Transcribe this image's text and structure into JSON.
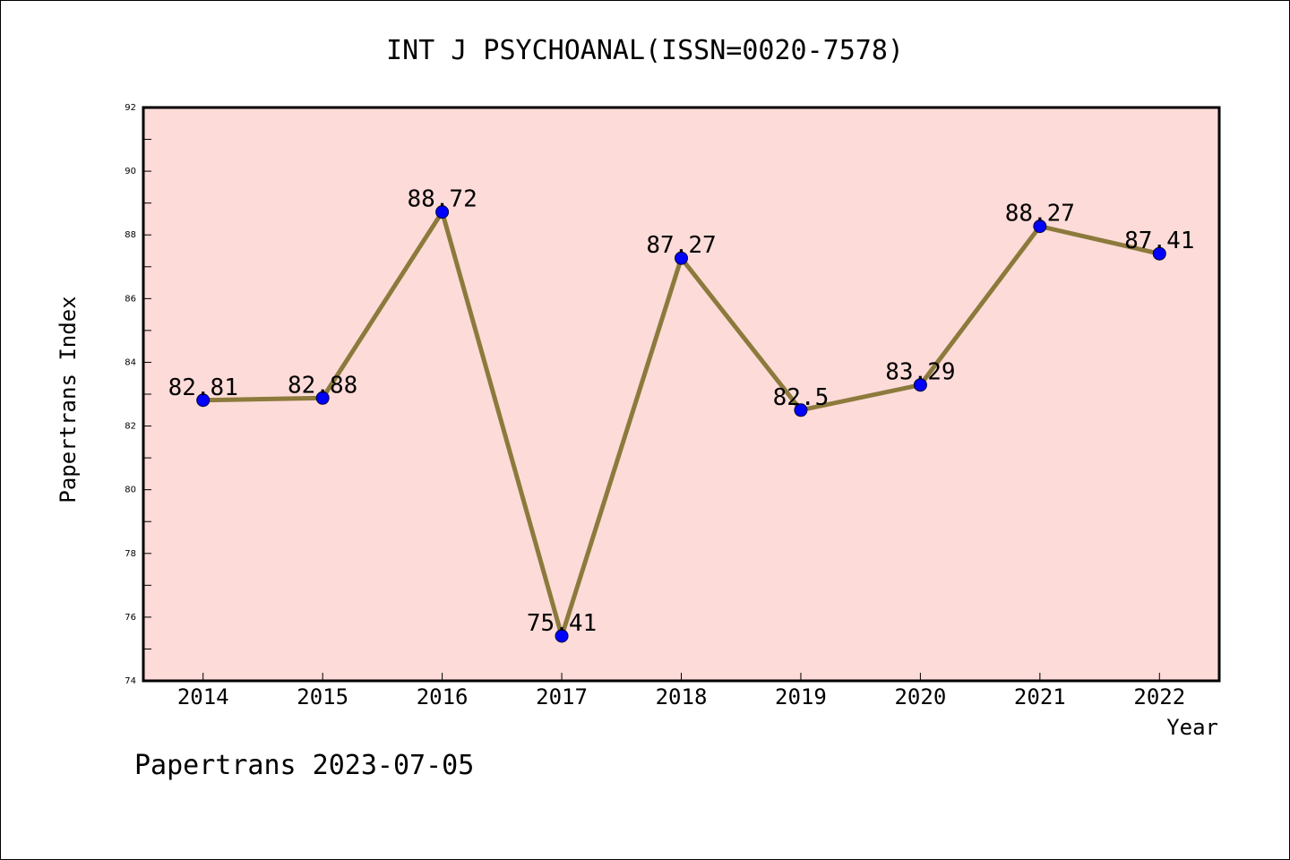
{
  "chart_data": {
    "type": "line",
    "title": "INT J PSYCHOANAL(ISSN=0020-7578)",
    "xlabel": "Year",
    "ylabel": "Papertrans Index",
    "categories": [
      "2014",
      "2015",
      "2016",
      "2017",
      "2018",
      "2019",
      "2020",
      "2021",
      "2022"
    ],
    "series": [
      {
        "values": [
          82.81,
          82.88,
          88.72,
          75.41,
          87.27,
          82.5,
          83.29,
          88.27,
          87.41
        ],
        "labels": [
          "82.81",
          "82.88",
          "88.72",
          "75.41",
          "87.27",
          "82.5",
          "83.29",
          "88.27",
          "87.41"
        ]
      }
    ],
    "ylim": [
      74,
      92
    ],
    "yticks": [
      "74",
      "76",
      "78",
      "80",
      "82",
      "84",
      "86",
      "88",
      "90",
      "92"
    ],
    "grid": false,
    "legend": "none",
    "colors": {
      "plot_background": "#fddbd8",
      "line": "#8c7a3c",
      "marker": "#0000ff"
    }
  },
  "footer": "Papertrans 2023-07-05"
}
